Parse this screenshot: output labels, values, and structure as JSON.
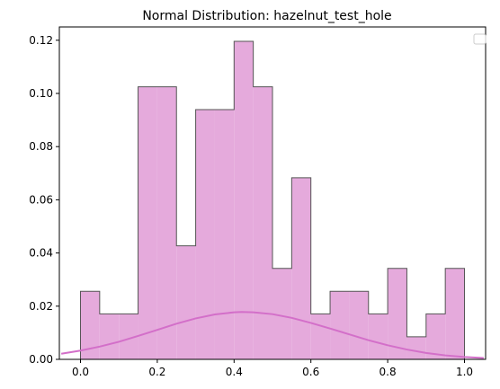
{
  "chart_data": {
    "type": "bar",
    "title": "Normal Distribution: hazelnut_test_hole",
    "xlabel": "",
    "ylabel": "",
    "xlim": [
      -0.055,
      1.055
    ],
    "ylim": [
      0,
      0.125
    ],
    "xticks": [
      0.0,
      0.2,
      0.4,
      0.6,
      0.8,
      1.0
    ],
    "xtick_labels": [
      "0.0",
      "0.2",
      "0.4",
      "0.6",
      "0.8",
      "1.0"
    ],
    "yticks": [
      0.0,
      0.02,
      0.04,
      0.06,
      0.08,
      0.1,
      0.12
    ],
    "ytick_labels": [
      "0.00",
      "0.02",
      "0.04",
      "0.06",
      "0.08",
      "0.10",
      "0.12"
    ],
    "grid": false,
    "legend": {
      "placement": "top-right",
      "entries": []
    },
    "histogram": {
      "bin_edges": [
        0.0,
        0.05,
        0.1,
        0.15,
        0.2,
        0.25,
        0.3,
        0.35,
        0.4,
        0.45,
        0.5,
        0.55,
        0.6,
        0.65,
        0.7,
        0.75,
        0.8,
        0.85,
        0.9,
        0.95,
        1.0
      ],
      "values": [
        0.0256,
        0.0171,
        0.0171,
        0.1025,
        0.1025,
        0.0427,
        0.0939,
        0.0939,
        0.1196,
        0.1025,
        0.0342,
        0.0683,
        0.0171,
        0.0256,
        0.0256,
        0.0171,
        0.0342,
        0.0085,
        0.0171,
        0.0342
      ],
      "fill_color": "#e5aadc",
      "edge_color": "#555555"
    },
    "curve": {
      "type": "line",
      "x": [
        -0.05,
        0.0,
        0.05,
        0.1,
        0.15,
        0.2,
        0.25,
        0.3,
        0.35,
        0.4,
        0.42,
        0.45,
        0.5,
        0.55,
        0.6,
        0.65,
        0.7,
        0.75,
        0.8,
        0.85,
        0.9,
        0.95,
        1.0,
        1.05
      ],
      "y": [
        0.0021,
        0.0033,
        0.0048,
        0.0066,
        0.0088,
        0.0111,
        0.0134,
        0.0154,
        0.0169,
        0.0177,
        0.0178,
        0.0177,
        0.017,
        0.0156,
        0.0137,
        0.0116,
        0.0094,
        0.0072,
        0.0053,
        0.0037,
        0.0024,
        0.0015,
        0.0009,
        0.0005
      ],
      "color": "#d36fc9"
    }
  }
}
